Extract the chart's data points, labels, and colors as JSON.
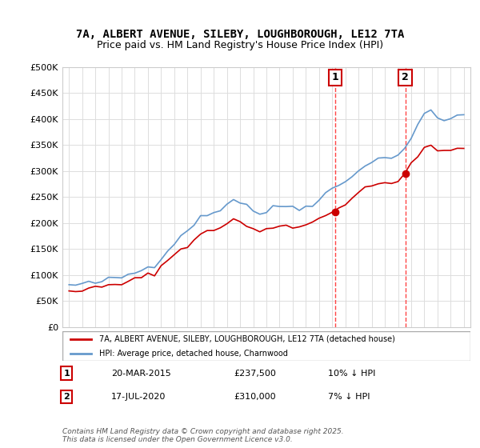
{
  "title_line1": "7A, ALBERT AVENUE, SILEBY, LOUGHBOROUGH, LE12 7TA",
  "title_line2": "Price paid vs. HM Land Registry's House Price Index (HPI)",
  "ylabel": "",
  "xlabel": "",
  "hpi_color": "#6699cc",
  "price_color": "#cc0000",
  "marker_color": "#cc0000",
  "dashed_line_color": "#ff4444",
  "annotation1": {
    "label": "1",
    "date": "20-MAR-2015",
    "price": "£237,500",
    "note": "10% ↓ HPI"
  },
  "annotation2": {
    "label": "2",
    "date": "17-JUL-2020",
    "price": "£310,000",
    "note": "7% ↓ HPI"
  },
  "legend_line1": "7A, ALBERT AVENUE, SILEBY, LOUGHBOROUGH, LE12 7TA (detached house)",
  "legend_line2": "HPI: Average price, detached house, Charnwood",
  "footer": "Contains HM Land Registry data © Crown copyright and database right 2025.\nThis data is licensed under the Open Government Licence v3.0.",
  "ylim": [
    0,
    500000
  ],
  "yticks": [
    0,
    50000,
    100000,
    150000,
    200000,
    250000,
    300000,
    350000,
    400000,
    450000,
    500000
  ],
  "background_color": "#ffffff",
  "grid_color": "#dddddd"
}
